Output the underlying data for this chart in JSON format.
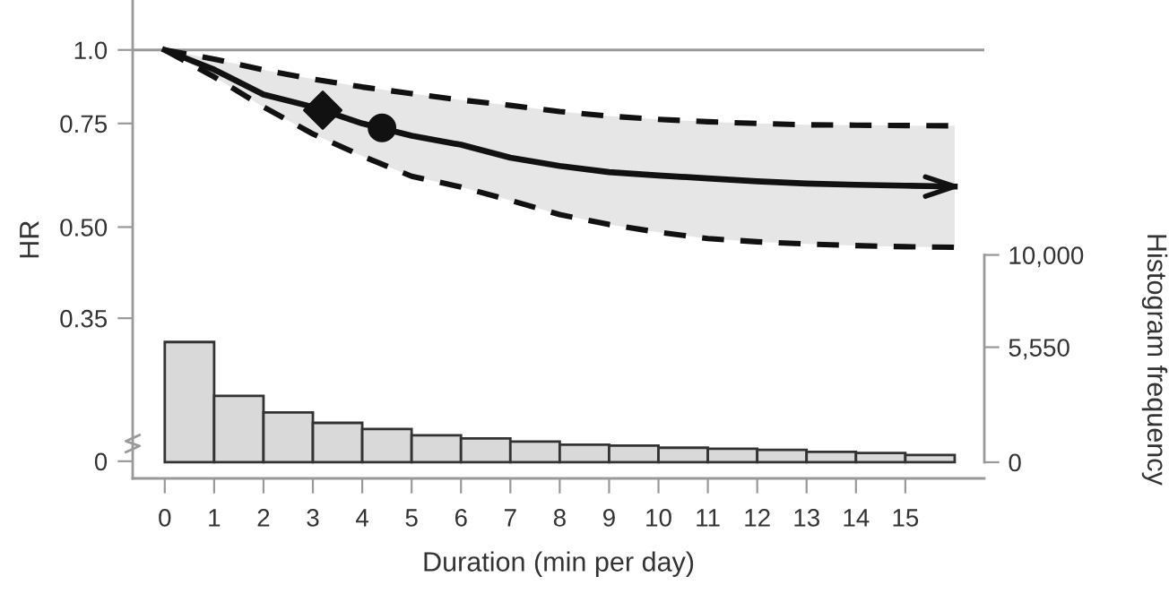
{
  "chart_data": {
    "type": "line",
    "xlabel": "Duration (min per day)",
    "ylabel": "HR",
    "y2label": "Histogram frequency",
    "x": [
      0,
      1,
      2,
      3,
      4,
      5,
      6,
      7,
      8,
      9,
      10,
      11,
      12,
      13,
      14,
      15,
      16
    ],
    "series": [
      {
        "type": "histogram",
        "axis": "y2",
        "color": "#d9d9d9",
        "bins": [
          0,
          1,
          2,
          3,
          4,
          5,
          6,
          7,
          8,
          9,
          10,
          11,
          12,
          13,
          14,
          15,
          16
        ],
        "values": [
          5800,
          3200,
          2400,
          1900,
          1600,
          1300,
          1150,
          1000,
          850,
          800,
          700,
          650,
          600,
          500,
          450,
          350
        ]
      },
      {
        "color": "#111111",
        "line_style": "dashed",
        "values": [
          1.0,
          0.965,
          0.925,
          0.892,
          0.865,
          0.843,
          0.822,
          0.805,
          0.786,
          0.772,
          0.762,
          0.755,
          0.75,
          0.746,
          0.745,
          0.744,
          0.743
        ]
      },
      {
        "color": "#111111",
        "line_style": "dashed",
        "values": [
          1.0,
          0.9,
          0.8,
          0.72,
          0.66,
          0.61,
          0.585,
          0.555,
          0.525,
          0.505,
          0.49,
          0.478,
          0.472,
          0.468,
          0.465,
          0.463,
          0.462
        ]
      },
      {
        "color": "#111111",
        "line_style": "solid",
        "values": [
          1.0,
          0.926,
          0.84,
          0.8,
          0.75,
          0.715,
          0.69,
          0.656,
          0.635,
          0.62,
          0.612,
          0.605,
          0.598,
          0.593,
          0.59,
          0.588,
          0.586
        ],
        "upper": [
          1.0,
          0.965,
          0.925,
          0.892,
          0.865,
          0.843,
          0.822,
          0.805,
          0.786,
          0.772,
          0.762,
          0.755,
          0.75,
          0.746,
          0.745,
          0.744,
          0.743
        ],
        "lower": [
          1.0,
          0.9,
          0.8,
          0.72,
          0.66,
          0.61,
          0.585,
          0.555,
          0.525,
          0.505,
          0.49,
          0.478,
          0.472,
          0.468,
          0.465,
          0.463,
          0.462
        ]
      },
      {
        "type": "scatter",
        "marker": "diamond",
        "color": "#111111",
        "x": [
          3.2
        ],
        "values": [
          0.79
        ]
      },
      {
        "type": "scatter",
        "marker": "circle",
        "color": "#111111",
        "x": [
          4.4
        ],
        "values": [
          0.737
        ]
      }
    ],
    "log": "y",
    "xlim": [
      -0.65,
      16.6
    ],
    "xticks": [
      0,
      1,
      2,
      3,
      4,
      5,
      6,
      7,
      8,
      9,
      10,
      11,
      12,
      13,
      14,
      15
    ],
    "ylim": [
      0.187,
      1.21
    ],
    "yticks": [
      {
        "value": 0.2,
        "label": "0"
      },
      0.35,
      {
        "value": 0.5,
        "label": "0.50"
      },
      0.75,
      {
        "value": 1.0,
        "label": "1.0"
      }
    ],
    "y2lim": [
      -780,
      22240
    ],
    "y2ticks": [
      0,
      {
        "value": 5550,
        "label": "5,550"
      },
      {
        "value": 10000,
        "label": "10,000"
      }
    ],
    "ref_lines": [
      {
        "axis": "y",
        "value": 1.0,
        "color": "#999999"
      }
    ],
    "grid": false,
    "legend": false
  }
}
